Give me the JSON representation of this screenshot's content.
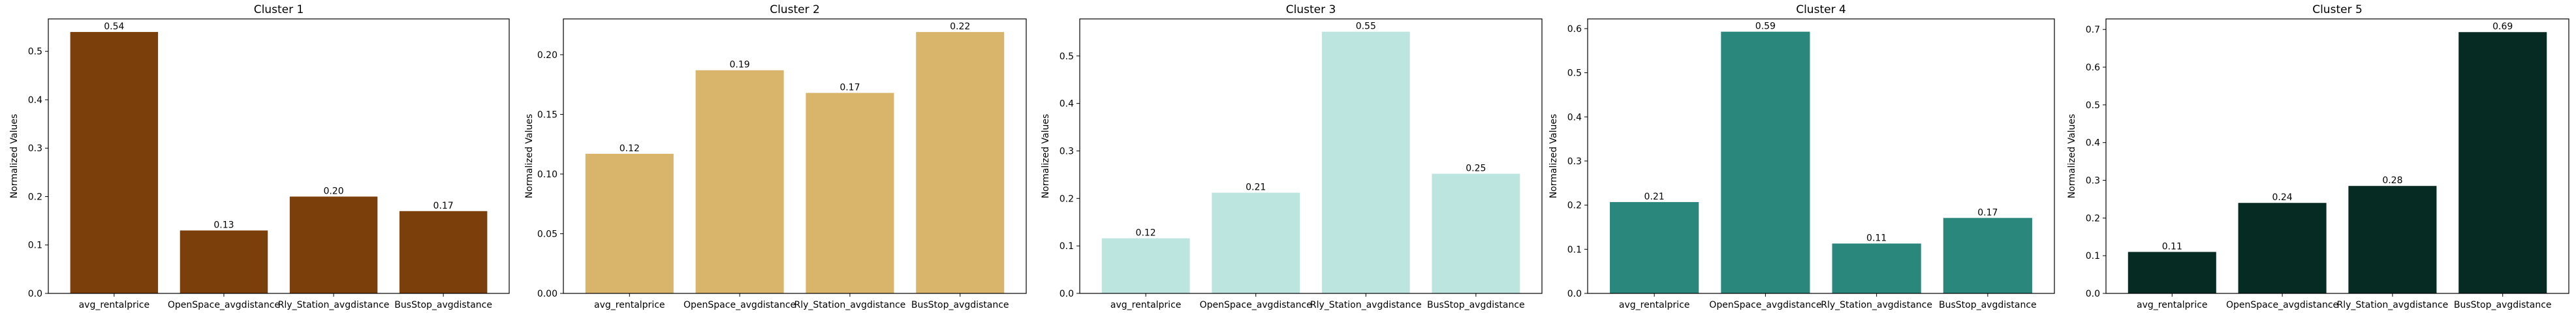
{
  "chart_data": [
    {
      "type": "bar",
      "title": "Cluster 1",
      "ylabel": "Normalized Values",
      "categories": [
        "avg_rentalprice",
        "OpenSpace_avgdistance",
        "Rly_Station_avgdistance",
        "BusStop_avgdistance"
      ],
      "values": [
        0.54,
        0.13,
        0.2,
        0.17
      ],
      "data_labels": [
        "0.54",
        "0.13",
        "0.20",
        "0.17"
      ],
      "ylim": [
        0,
        0.567
      ],
      "yticks": [
        0.0,
        0.1,
        0.2,
        0.3,
        0.4,
        0.5
      ],
      "ytick_labels": [
        "0.0",
        "0.1",
        "0.2",
        "0.3",
        "0.4",
        "0.5"
      ],
      "color": "#7b3f0c",
      "grid": false
    },
    {
      "type": "bar",
      "title": "Cluster 2",
      "ylabel": "Normalized Values",
      "categories": [
        "avg_rentalprice",
        "OpenSpace_avgdistance",
        "Rly_Station_avgdistance",
        "BusStop_avgdistance"
      ],
      "values": [
        0.117,
        0.187,
        0.168,
        0.219
      ],
      "data_labels": [
        "0.12",
        "0.19",
        "0.17",
        "0.22"
      ],
      "ylim": [
        0,
        0.23
      ],
      "yticks": [
        0.0,
        0.05,
        0.1,
        0.15,
        0.2
      ],
      "ytick_labels": [
        "0.00",
        "0.05",
        "0.10",
        "0.15",
        "0.20"
      ],
      "color": "#d8b56a",
      "grid": false
    },
    {
      "type": "bar",
      "title": "Cluster 3",
      "ylabel": "Normalized Values",
      "categories": [
        "avg_rentalprice",
        "OpenSpace_avgdistance",
        "Rly_Station_avgdistance",
        "BusStop_avgdistance"
      ],
      "values": [
        0.116,
        0.212,
        0.551,
        0.252
      ],
      "data_labels": [
        "0.12",
        "0.21",
        "0.55",
        "0.25"
      ],
      "ylim": [
        0,
        0.578
      ],
      "yticks": [
        0.0,
        0.1,
        0.2,
        0.3,
        0.4,
        0.5
      ],
      "ytick_labels": [
        "0.0",
        "0.1",
        "0.2",
        "0.3",
        "0.4",
        "0.5"
      ],
      "color": "#bde5e0",
      "grid": false
    },
    {
      "type": "bar",
      "title": "Cluster 4",
      "ylabel": "Normalized Values",
      "categories": [
        "avg_rentalprice",
        "OpenSpace_avgdistance",
        "Rly_Station_avgdistance",
        "BusStop_avgdistance"
      ],
      "values": [
        0.207,
        0.593,
        0.113,
        0.171
      ],
      "data_labels": [
        "0.21",
        "0.59",
        "0.11",
        "0.17"
      ],
      "ylim": [
        0,
        0.622
      ],
      "yticks": [
        0.0,
        0.1,
        0.2,
        0.3,
        0.4,
        0.5,
        0.6
      ],
      "ytick_labels": [
        "0.0",
        "0.1",
        "0.2",
        "0.3",
        "0.4",
        "0.5",
        "0.6"
      ],
      "color": "#2a877c",
      "grid": false
    },
    {
      "type": "bar",
      "title": "Cluster 5",
      "ylabel": "Normalized Values",
      "categories": [
        "avg_rentalprice",
        "OpenSpace_avgdistance",
        "Rly_Station_avgdistance",
        "BusStop_avgdistance"
      ],
      "values": [
        0.11,
        0.24,
        0.285,
        0.693
      ],
      "data_labels": [
        "0.11",
        "0.24",
        "0.28",
        "0.69"
      ],
      "ylim": [
        0,
        0.728
      ],
      "yticks": [
        0.0,
        0.1,
        0.2,
        0.3,
        0.4,
        0.5,
        0.6,
        0.7
      ],
      "ytick_labels": [
        "0.0",
        "0.1",
        "0.2",
        "0.3",
        "0.4",
        "0.5",
        "0.6",
        "0.7"
      ],
      "color": "#062b22",
      "grid": false
    }
  ]
}
